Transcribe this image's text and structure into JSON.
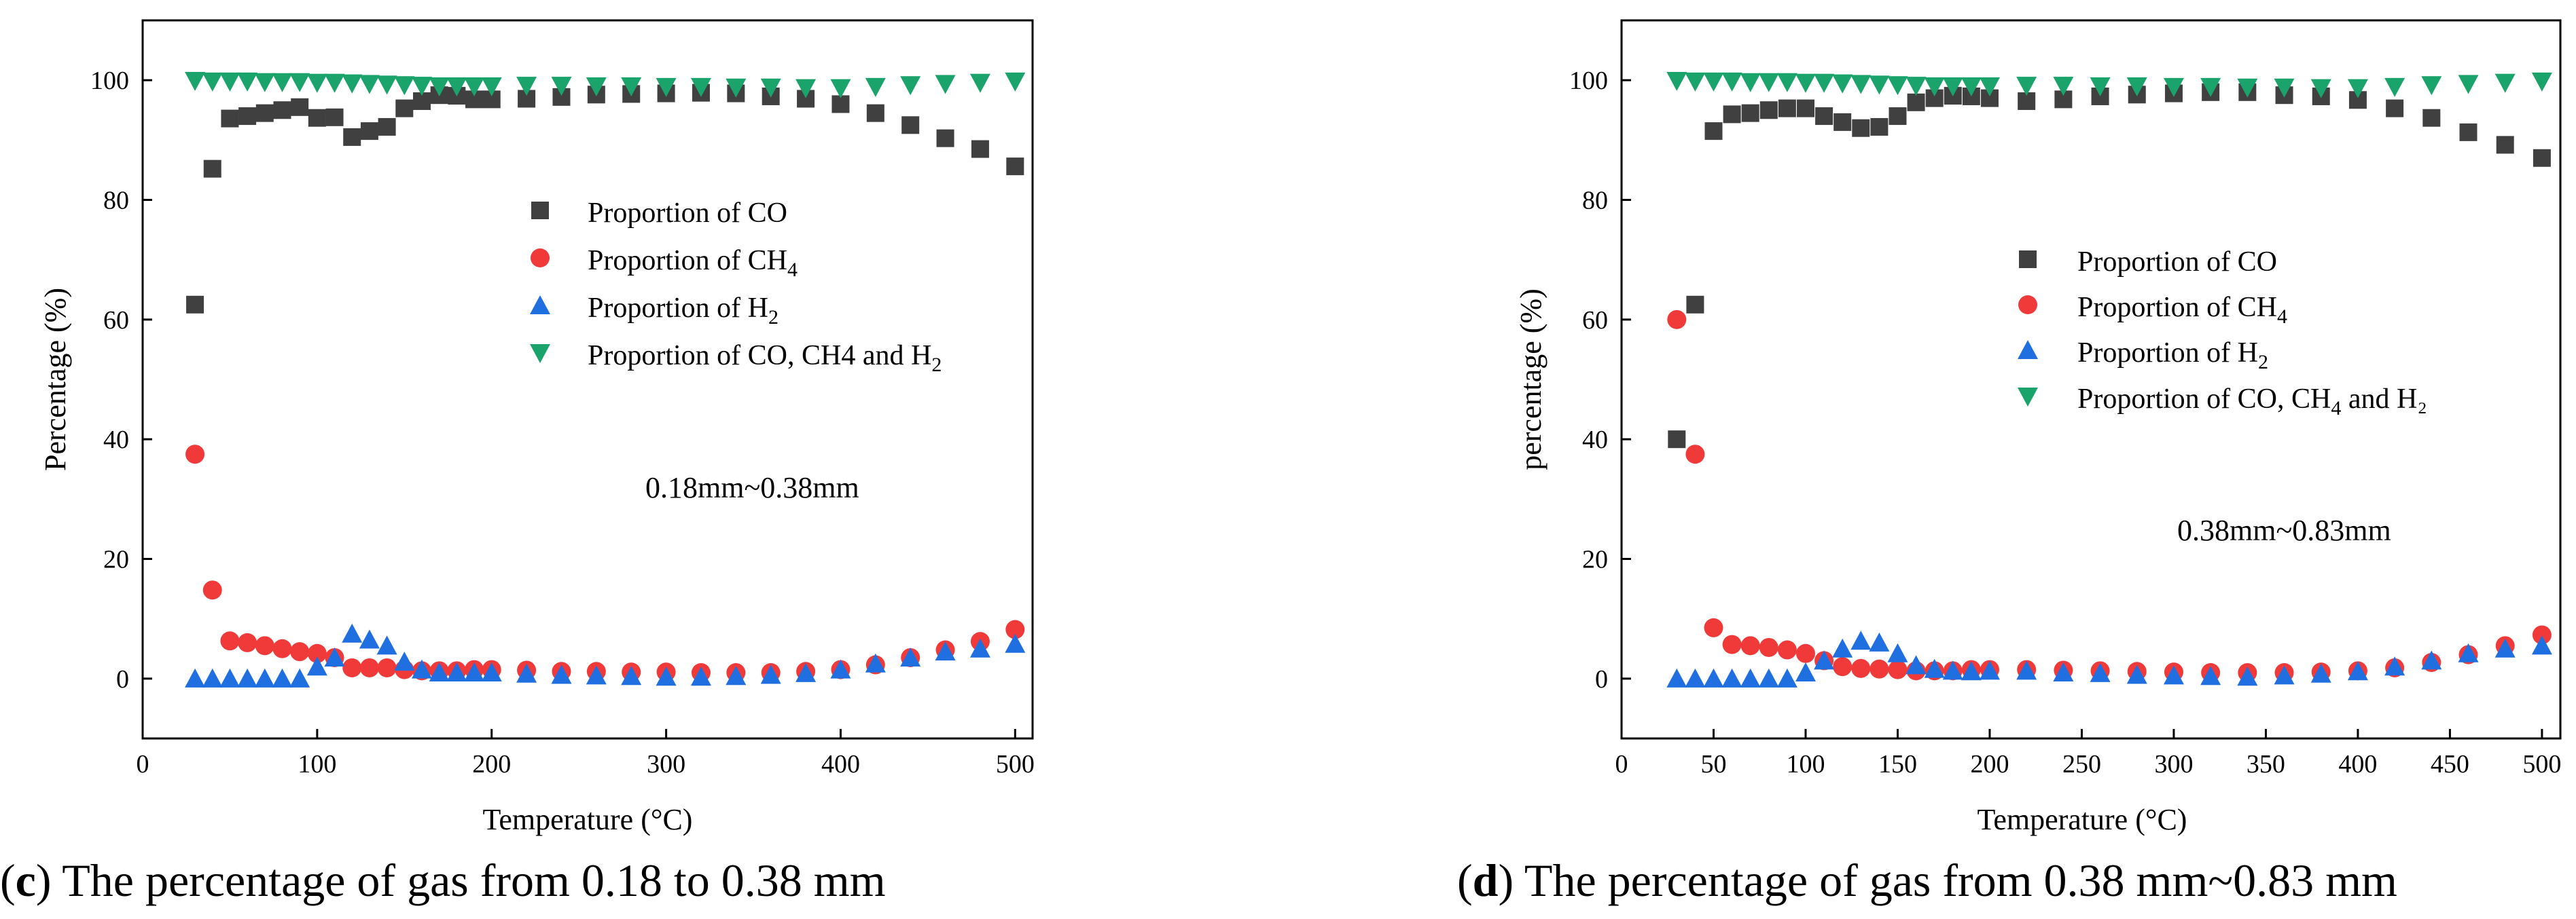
{
  "chart_data": [
    {
      "type": "scatter",
      "panel": "c",
      "xlabel": "Temperature (°C)",
      "ylabel": "Percentage (%)",
      "xlim": [
        0,
        510
      ],
      "ylim": [
        -10,
        110
      ],
      "xticks": [
        0,
        100,
        200,
        300,
        400,
        500
      ],
      "yticks": [
        0,
        20,
        40,
        60,
        80,
        100
      ],
      "xtick_labels": [
        "0",
        "100",
        "200",
        "300",
        "400",
        "500"
      ],
      "ytick_labels": [
        "0",
        "20",
        "40",
        "60",
        "80",
        "100"
      ],
      "annotation": "0.18mm~0.38mm",
      "caption": {
        "letter": "c",
        "text": " The percentage of gas from 0.18 to 0.38 mm"
      },
      "series": [
        {
          "name": "Proportion of CO",
          "legend": {
            "main": "Proportion of CO",
            "sub": "",
            "tail": ""
          },
          "marker": "square",
          "color": "#404040",
          "x": [
            30,
            40,
            50,
            60,
            70,
            80,
            90,
            100,
            110,
            120,
            130,
            140,
            150,
            160,
            170,
            180,
            190,
            200,
            220,
            240,
            260,
            280,
            300,
            320,
            340,
            360,
            380,
            400,
            420,
            440,
            460,
            480,
            500
          ],
          "y": [
            62.5,
            85.2,
            93.6,
            94.0,
            94.5,
            95.0,
            95.5,
            93.7,
            93.8,
            90.5,
            91.5,
            92.2,
            95.3,
            96.5,
            97.5,
            97.4,
            96.8,
            96.8,
            96.9,
            97.2,
            97.6,
            97.7,
            97.8,
            97.9,
            97.8,
            97.3,
            96.9,
            96.0,
            94.5,
            92.5,
            90.3,
            88.5,
            85.6
          ]
        },
        {
          "name": "Proportion of CH4",
          "legend": {
            "main": "Proportion of CH",
            "sub": "4",
            "tail": ""
          },
          "marker": "circle",
          "color": "#f03a3a",
          "x": [
            30,
            40,
            50,
            60,
            70,
            80,
            90,
            100,
            110,
            120,
            130,
            140,
            150,
            160,
            170,
            180,
            190,
            200,
            220,
            240,
            260,
            280,
            300,
            320,
            340,
            360,
            380,
            400,
            420,
            440,
            460,
            480,
            500
          ],
          "y": [
            37.5,
            14.8,
            6.3,
            6.0,
            5.5,
            5.0,
            4.5,
            4.2,
            3.5,
            1.8,
            1.8,
            1.8,
            1.5,
            1.3,
            1.3,
            1.3,
            1.5,
            1.5,
            1.4,
            1.2,
            1.2,
            1.1,
            1.1,
            1.0,
            1.0,
            1.0,
            1.2,
            1.5,
            2.3,
            3.5,
            4.8,
            6.2,
            8.2
          ]
        },
        {
          "name": "Proportion of H2",
          "legend": {
            "main": "Proportion of H",
            "sub": "2",
            "tail": ""
          },
          "marker": "triangle-up",
          "color": "#1f6fe0",
          "x": [
            30,
            40,
            50,
            60,
            70,
            80,
            90,
            100,
            110,
            120,
            130,
            140,
            150,
            160,
            170,
            180,
            190,
            200,
            220,
            240,
            260,
            280,
            300,
            320,
            340,
            360,
            380,
            400,
            420,
            440,
            460,
            480,
            500
          ],
          "y": [
            0,
            0,
            0,
            0,
            0,
            0,
            0,
            2.0,
            3.5,
            7.5,
            6.5,
            5.5,
            2.8,
            1.5,
            1.0,
            1.0,
            1.0,
            1.0,
            0.8,
            0.6,
            0.5,
            0.4,
            0.3,
            0.3,
            0.4,
            0.6,
            0.9,
            1.5,
            2.5,
            3.5,
            4.5,
            5.0,
            5.8
          ]
        },
        {
          "name": "Proportion of CO, CH4 and H2",
          "legend": {
            "main": "Proportion of CO, CH4 and H",
            "sub": "2",
            "tail": ""
          },
          "marker": "triangle-down",
          "color": "#1aa36a",
          "x": [
            30,
            40,
            50,
            60,
            70,
            80,
            90,
            100,
            110,
            120,
            130,
            140,
            150,
            160,
            170,
            180,
            190,
            200,
            220,
            240,
            260,
            280,
            300,
            320,
            340,
            360,
            380,
            400,
            420,
            440,
            460,
            480,
            500
          ],
          "y": [
            99.9,
            99.8,
            99.8,
            99.8,
            99.7,
            99.7,
            99.7,
            99.6,
            99.6,
            99.5,
            99.4,
            99.3,
            99.2,
            99.1,
            99.0,
            99.0,
            99.0,
            99.0,
            99.1,
            99.1,
            99.0,
            99.0,
            98.9,
            98.9,
            98.8,
            98.8,
            98.7,
            98.7,
            98.9,
            99.2,
            99.4,
            99.6,
            99.8
          ]
        }
      ]
    },
    {
      "type": "scatter",
      "panel": "d",
      "xlabel": "Temperature (°C)",
      "ylabel": "percentage (%)",
      "xlim": [
        0,
        510
      ],
      "ylim": [
        -10,
        110
      ],
      "xticks": [
        0,
        50,
        100,
        150,
        200,
        250,
        300,
        350,
        400,
        450,
        500
      ],
      "yticks": [
        0,
        20,
        40,
        60,
        80,
        100
      ],
      "xtick_labels": [
        "0",
        "50",
        "100",
        "150",
        "200",
        "250",
        "300",
        "350",
        "400",
        "450",
        "500"
      ],
      "ytick_labels": [
        "0",
        "20",
        "40",
        "60",
        "80",
        "100"
      ],
      "annotation": "0.38mm~0.83mm",
      "caption": {
        "letter": "d",
        "text": " The percentage of gas from 0.38 mm~0.83 mm"
      },
      "series": [
        {
          "name": "Proportion of CO",
          "legend": {
            "main": "Proportion of CO",
            "sub": "",
            "tail": ""
          },
          "marker": "square",
          "color": "#404040",
          "x": [
            30,
            40,
            50,
            60,
            70,
            80,
            90,
            100,
            110,
            120,
            130,
            140,
            150,
            160,
            170,
            180,
            190,
            200,
            220,
            240,
            260,
            280,
            300,
            320,
            340,
            360,
            380,
            400,
            420,
            440,
            460,
            480,
            500
          ],
          "y": [
            40.0,
            62.5,
            91.5,
            94.3,
            94.5,
            95.0,
            95.3,
            95.3,
            94.0,
            93.0,
            92.0,
            92.2,
            94.0,
            96.3,
            97.0,
            97.4,
            97.3,
            97.0,
            96.5,
            96.8,
            97.3,
            97.6,
            97.8,
            98.0,
            98.0,
            97.5,
            97.3,
            96.7,
            95.3,
            93.7,
            91.3,
            89.2,
            87.0
          ]
        },
        {
          "name": "Proportion of CH4",
          "legend": {
            "main": "Proportion of CH",
            "sub": "4",
            "tail": ""
          },
          "marker": "circle",
          "color": "#f03a3a",
          "x": [
            30,
            40,
            50,
            60,
            70,
            80,
            90,
            100,
            110,
            120,
            130,
            140,
            150,
            160,
            170,
            180,
            190,
            200,
            220,
            240,
            260,
            280,
            300,
            320,
            340,
            360,
            380,
            400,
            420,
            440,
            460,
            480,
            500
          ],
          "y": [
            60.0,
            37.5,
            8.5,
            5.7,
            5.5,
            5.2,
            4.8,
            4.2,
            3.0,
            2.0,
            1.7,
            1.6,
            1.5,
            1.3,
            1.3,
            1.3,
            1.5,
            1.5,
            1.5,
            1.4,
            1.3,
            1.2,
            1.1,
            1.0,
            1.0,
            1.0,
            1.1,
            1.3,
            1.8,
            2.7,
            4.0,
            5.5,
            7.3
          ]
        },
        {
          "name": "Proportion of H2",
          "legend": {
            "main": "Proportion of H",
            "sub": "2",
            "tail": ""
          },
          "marker": "triangle-up",
          "color": "#1f6fe0",
          "x": [
            30,
            40,
            50,
            60,
            70,
            80,
            90,
            100,
            110,
            120,
            130,
            140,
            150,
            160,
            170,
            180,
            190,
            200,
            220,
            240,
            260,
            280,
            300,
            320,
            340,
            360,
            380,
            400,
            420,
            440,
            460,
            480,
            500
          ],
          "y": [
            0,
            0,
            0,
            0,
            0,
            0,
            0,
            1.0,
            3.0,
            5.0,
            6.3,
            6.0,
            4.2,
            2.2,
            1.6,
            1.3,
            1.2,
            1.3,
            1.3,
            1.0,
            0.9,
            0.6,
            0.5,
            0.4,
            0.3,
            0.5,
            0.8,
            1.2,
            2.0,
            3.0,
            4.2,
            5.0,
            5.5
          ]
        },
        {
          "name": "Proportion of CO, CH4 and H2",
          "legend": {
            "main": "Proportion of CO, CH",
            "sub": "4",
            "tail": " and H₂"
          },
          "marker": "triangle-down",
          "color": "#1aa36a",
          "x": [
            30,
            40,
            50,
            60,
            70,
            80,
            90,
            100,
            110,
            120,
            130,
            140,
            150,
            160,
            170,
            180,
            190,
            200,
            220,
            240,
            260,
            280,
            300,
            320,
            340,
            360,
            380,
            400,
            420,
            440,
            460,
            480,
            500
          ],
          "y": [
            99.9,
            99.8,
            99.8,
            99.8,
            99.7,
            99.7,
            99.7,
            99.6,
            99.6,
            99.5,
            99.4,
            99.3,
            99.2,
            99.1,
            99.0,
            99.0,
            99.0,
            99.0,
            99.1,
            99.1,
            99.0,
            99.0,
            98.9,
            98.9,
            98.8,
            98.8,
            98.7,
            98.7,
            98.9,
            99.2,
            99.4,
            99.6,
            99.8
          ]
        }
      ]
    }
  ]
}
